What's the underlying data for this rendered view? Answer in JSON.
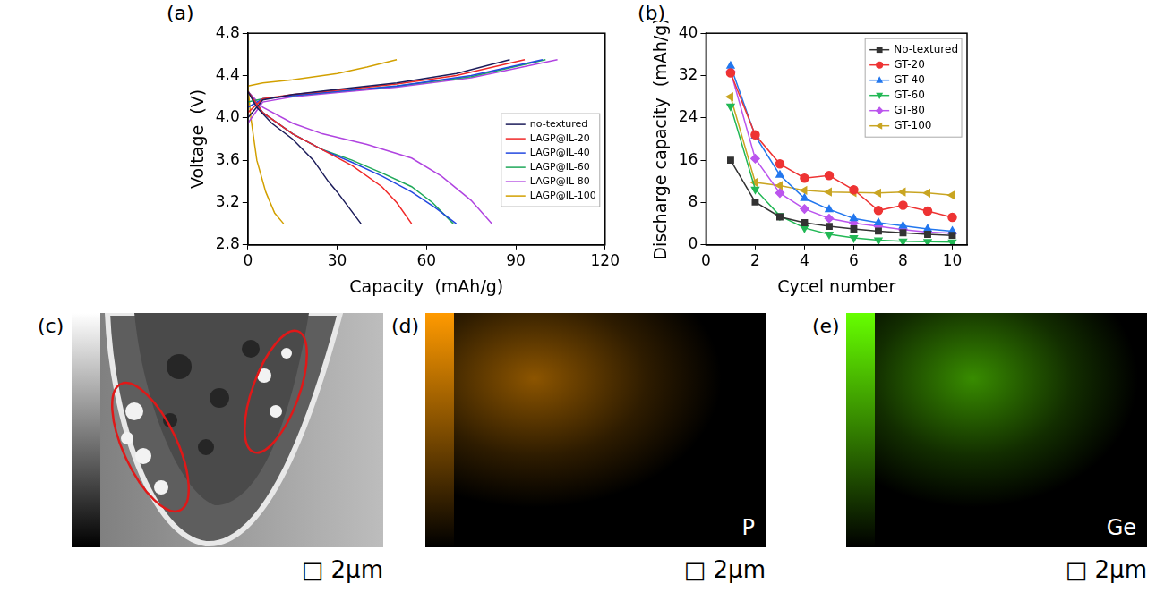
{
  "chart_data": [
    {
      "panel": "(a)",
      "type": "line",
      "x_label": "Capacity  (mAh/g)",
      "y_label": "Voltage  (V)",
      "xlim": [
        0,
        120
      ],
      "xticks": [
        0,
        30,
        60,
        90,
        120
      ],
      "ylim": [
        2.8,
        4.8
      ],
      "yticks": [
        2.8,
        3.2,
        3.6,
        {
          "value": 4,
          "label": "4.0"
        },
        4.4,
        4.8
      ],
      "grid": false,
      "legend": "right",
      "series": [
        {
          "name": "no-textured",
          "color": "#1c1c5a",
          "x": [
            0,
            5,
            15,
            30,
            50,
            70,
            88,
            null,
            0,
            3,
            8,
            15,
            22,
            27,
            30,
            34,
            38
          ],
          "values": [
            4.0,
            4.17,
            4.22,
            4.27,
            4.33,
            4.42,
            4.55,
            null,
            4.25,
            4.1,
            3.95,
            3.8,
            3.6,
            3.4,
            3.3,
            3.15,
            3.0
          ]
        },
        {
          "name": "LAGP@IL-20",
          "color": "#f02828",
          "x": [
            0,
            5,
            15,
            30,
            50,
            70,
            93,
            null,
            0,
            5,
            15,
            25,
            35,
            45,
            50,
            55
          ],
          "values": [
            4.05,
            4.18,
            4.22,
            4.26,
            4.32,
            4.4,
            4.55,
            null,
            4.25,
            4.05,
            3.85,
            3.7,
            3.55,
            3.35,
            3.2,
            3.0
          ]
        },
        {
          "name": "LAGP@IL-40",
          "color": "#2348e0",
          "x": [
            0,
            5,
            15,
            30,
            50,
            75,
            99,
            null,
            0,
            5,
            15,
            25,
            35,
            45,
            55,
            63,
            70
          ],
          "values": [
            4.1,
            4.18,
            4.21,
            4.25,
            4.3,
            4.4,
            4.55,
            null,
            4.25,
            4.05,
            3.85,
            3.7,
            3.58,
            3.45,
            3.3,
            3.15,
            3.0
          ]
        },
        {
          "name": "LAGP@IL-60",
          "color": "#1fa85a",
          "x": [
            0,
            5,
            15,
            30,
            50,
            75,
            100,
            null,
            0,
            5,
            15,
            25,
            35,
            45,
            55,
            62,
            69
          ],
          "values": [
            4.15,
            4.18,
            4.21,
            4.25,
            4.3,
            4.39,
            4.55,
            null,
            4.25,
            4.05,
            3.85,
            3.7,
            3.6,
            3.48,
            3.35,
            3.2,
            3.0
          ]
        },
        {
          "name": "LAGP@IL-80",
          "color": "#b044e0",
          "x": [
            0,
            5,
            15,
            30,
            50,
            75,
            104,
            null,
            0,
            5,
            15,
            25,
            40,
            55,
            65,
            75,
            82
          ],
          "values": [
            3.95,
            4.15,
            4.2,
            4.24,
            4.29,
            4.38,
            4.55,
            null,
            4.25,
            4.1,
            3.95,
            3.85,
            3.75,
            3.62,
            3.45,
            3.22,
            3.0
          ]
        },
        {
          "name": "LAGP@IL-100",
          "color": "#d2a000",
          "x": [
            0,
            5,
            15,
            30,
            40,
            50,
            null,
            0,
            1,
            3,
            6,
            9,
            12
          ],
          "values": [
            4.3,
            4.33,
            4.36,
            4.42,
            4.48,
            4.55,
            null,
            4.3,
            4.0,
            3.6,
            3.3,
            3.1,
            3.0
          ]
        }
      ]
    },
    {
      "panel": "(b)",
      "type": "line",
      "x_label": "Cycel number",
      "y_label": "Discharge capacity  (mAh/g)",
      "x": [
        1,
        2,
        3,
        4,
        5,
        6,
        7,
        8,
        9,
        10
      ],
      "xlim": [
        0,
        10.6
      ],
      "xticks": [
        0,
        2,
        4,
        6,
        8,
        10
      ],
      "ylim": [
        0,
        40
      ],
      "yticks": [
        0,
        8,
        16,
        24,
        32,
        40
      ],
      "grid": false,
      "legend": "top right",
      "series": [
        {
          "name": "No-textured",
          "color": "#333333",
          "marker": "square",
          "values": [
            16,
            8.1,
            5.3,
            4.2,
            3.5,
            3.0,
            2.6,
            2.3,
            2.0,
            1.8
          ]
        },
        {
          "name": "GT-20",
          "color": "#ee3333",
          "marker": "circle",
          "values": [
            32.5,
            20.8,
            15.3,
            12.6,
            13.1,
            10.4,
            6.5,
            7.5,
            6.4,
            5.2
          ]
        },
        {
          "name": "GT-40",
          "color": "#2277ee",
          "marker": "triangle",
          "values": [
            33.8,
            20.6,
            13.2,
            8.8,
            6.7,
            5.0,
            4.2,
            3.6,
            3.0,
            2.6
          ]
        },
        {
          "name": "GT-60",
          "color": "#22b855",
          "marker": "triangle-down",
          "values": [
            26.2,
            10.5,
            5.5,
            3.2,
            2.0,
            1.3,
            0.9,
            0.7,
            0.6,
            0.5
          ]
        },
        {
          "name": "GT-80",
          "color": "#bb55ee",
          "marker": "diamond",
          "values": [
            32.8,
            16.3,
            9.8,
            6.8,
            5.0,
            4.1,
            3.5,
            2.9,
            2.4,
            2.2
          ]
        },
        {
          "name": "GT-100",
          "color": "#c9a522",
          "marker": "triangle-left",
          "values": [
            28,
            11.8,
            11.2,
            10.3,
            10.0,
            9.9,
            9.8,
            10.0,
            9.8,
            9.4
          ]
        }
      ]
    }
  ],
  "images": [
    {
      "panel": "(c)",
      "scale_bar": "□ 2μm"
    },
    {
      "panel": "(d)",
      "element": "P",
      "scale_bar": "□ 2μm"
    },
    {
      "panel": "(e)",
      "element": "Ge",
      "scale_bar": "□ 2μm"
    }
  ]
}
